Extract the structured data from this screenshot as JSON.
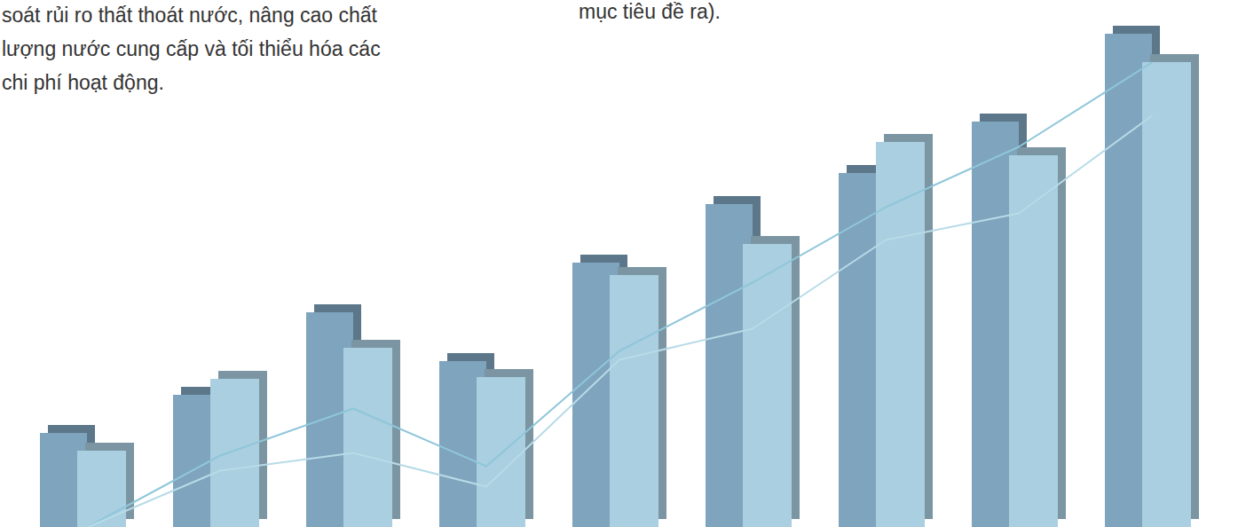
{
  "chart_data": {
    "type": "bar",
    "annotations": [
      "soát rủi ro thất thoát nước, nâng cao chất\nlượng nước cung cấp và tối thiểu hóa các\nchi phí hoạt động.",
      "mục tiêu đề ra)."
    ],
    "categories": [
      null,
      null,
      null,
      null,
      null,
      null,
      null,
      null,
      null
    ],
    "series": [
      {
        "type": "bar",
        "color": "#7fa4bd",
        "values": [
          106,
          149,
          242,
          187,
          298,
          364,
          399,
          457,
          556
        ]
      },
      {
        "type": "bar",
        "color": "#a9cfe0",
        "values": [
          86,
          167,
          202,
          169,
          284,
          319,
          434,
          419,
          524
        ]
      },
      {
        "type": "line",
        "color": "#8fc6da",
        "values": [
          0,
          81,
          134,
          69,
          199,
          276,
          361,
          429,
          524
        ]
      },
      {
        "type": "line",
        "color": "#b7dbe7",
        "values": [
          0,
          64,
          84,
          46,
          189,
          224,
          324,
          354,
          464
        ]
      }
    ],
    "ylim": [
      0,
      594
    ],
    "tick_labels": false,
    "grid": false
  }
}
